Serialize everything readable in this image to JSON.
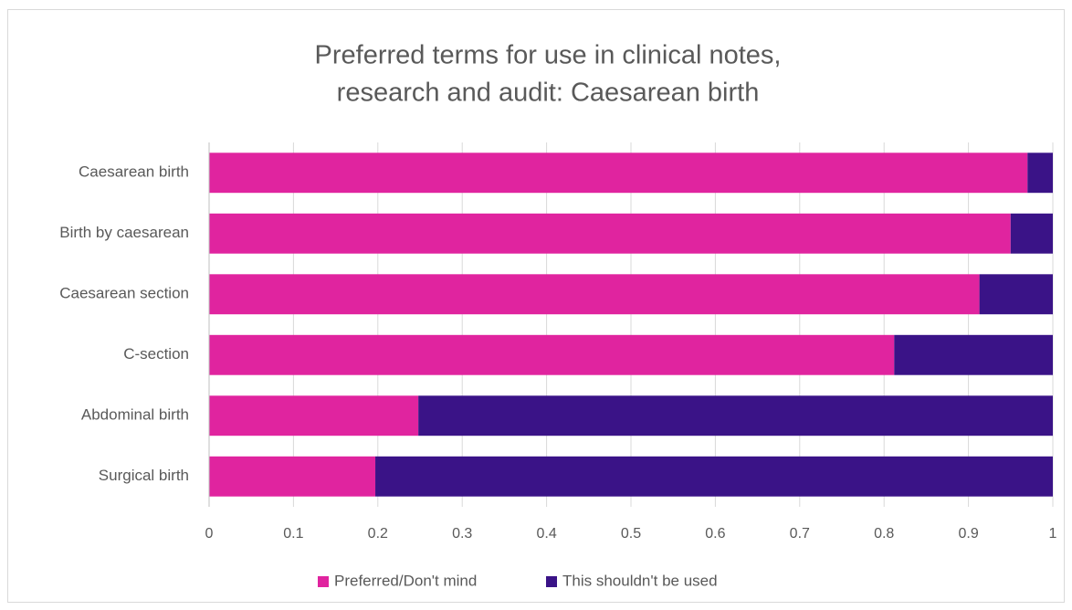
{
  "chart_data": {
    "type": "stacked_bar_horizontal",
    "title": [
      "Preferred terms for use in clinical notes,",
      "research and audit: Caesarean birth"
    ],
    "categories": [
      "Caesarean birth",
      "Birth by caesarean",
      "Caesarean section",
      "C-section",
      "Abdominal birth",
      "Surgical birth"
    ],
    "series": [
      {
        "name": "Preferred/Don't mind",
        "color": "#e0249f",
        "values": [
          0.97,
          0.95,
          0.913,
          0.812,
          0.248,
          0.197
        ]
      },
      {
        "name": "This shouldn't be used",
        "color": "#3a1387",
        "values": [
          0.03,
          0.05,
          0.087,
          0.188,
          0.752,
          0.803
        ]
      }
    ],
    "xlim": [
      0,
      1
    ],
    "xticks": [
      0,
      0.1,
      0.2,
      0.3,
      0.4,
      0.5,
      0.6,
      0.7,
      0.8,
      0.9,
      1
    ],
    "grid": true,
    "legend": "bottom"
  }
}
